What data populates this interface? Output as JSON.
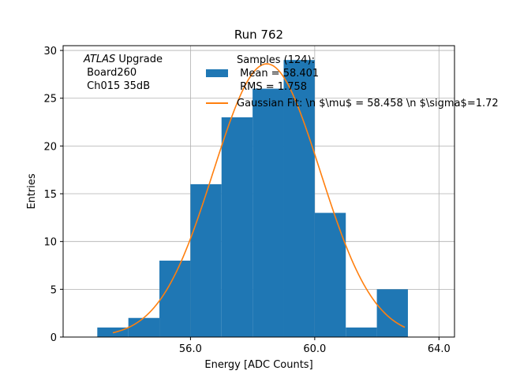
{
  "chart_data": {
    "type": "bar",
    "title": "Run 762",
    "xlabel": "Energy [ADC Counts]",
    "ylabel": "Entries",
    "xlim": [
      51.9,
      64.5
    ],
    "ylim": [
      0,
      30.5
    ],
    "xticks": [
      56.0,
      60.0,
      64.0
    ],
    "xtick_labels": [
      "56.0",
      "60.0",
      "64.0"
    ],
    "yticks": [
      0,
      5,
      10,
      15,
      20,
      25,
      30
    ],
    "ytick_labels": [
      "0",
      "5",
      "10",
      "15",
      "20",
      "25",
      "30"
    ],
    "grid": true,
    "bar_color": "#1f77b4",
    "fit_color": "#ff7f0e",
    "histogram": {
      "bin_edges": [
        53.0,
        54.0,
        55.0,
        56.0,
        57.0,
        58.0,
        59.0,
        60.0,
        61.0,
        62.0,
        63.0
      ],
      "counts": [
        1,
        2,
        8,
        16,
        23,
        26,
        29,
        13,
        1,
        5
      ]
    },
    "gaussian_fit": {
      "amplitude": 28.6,
      "mean": 58.458,
      "sigma": 1.72,
      "x_range": [
        53.5,
        62.9
      ]
    },
    "annotation": {
      "line1_italic": "ATLAS",
      "line1_rest": " Upgrade",
      "line2": " Board260",
      "line3": " Ch015 35dB"
    },
    "legend": {
      "placement": "top-right",
      "hist_line1": "Samples (124):",
      "hist_line2": " Mean = 58.401",
      "hist_line3": " RMS = 1.758",
      "fit_label": "Gaussian Fit: \\n $\\mu$ = 58.458 \\n $\\sigma$=1.72"
    }
  }
}
